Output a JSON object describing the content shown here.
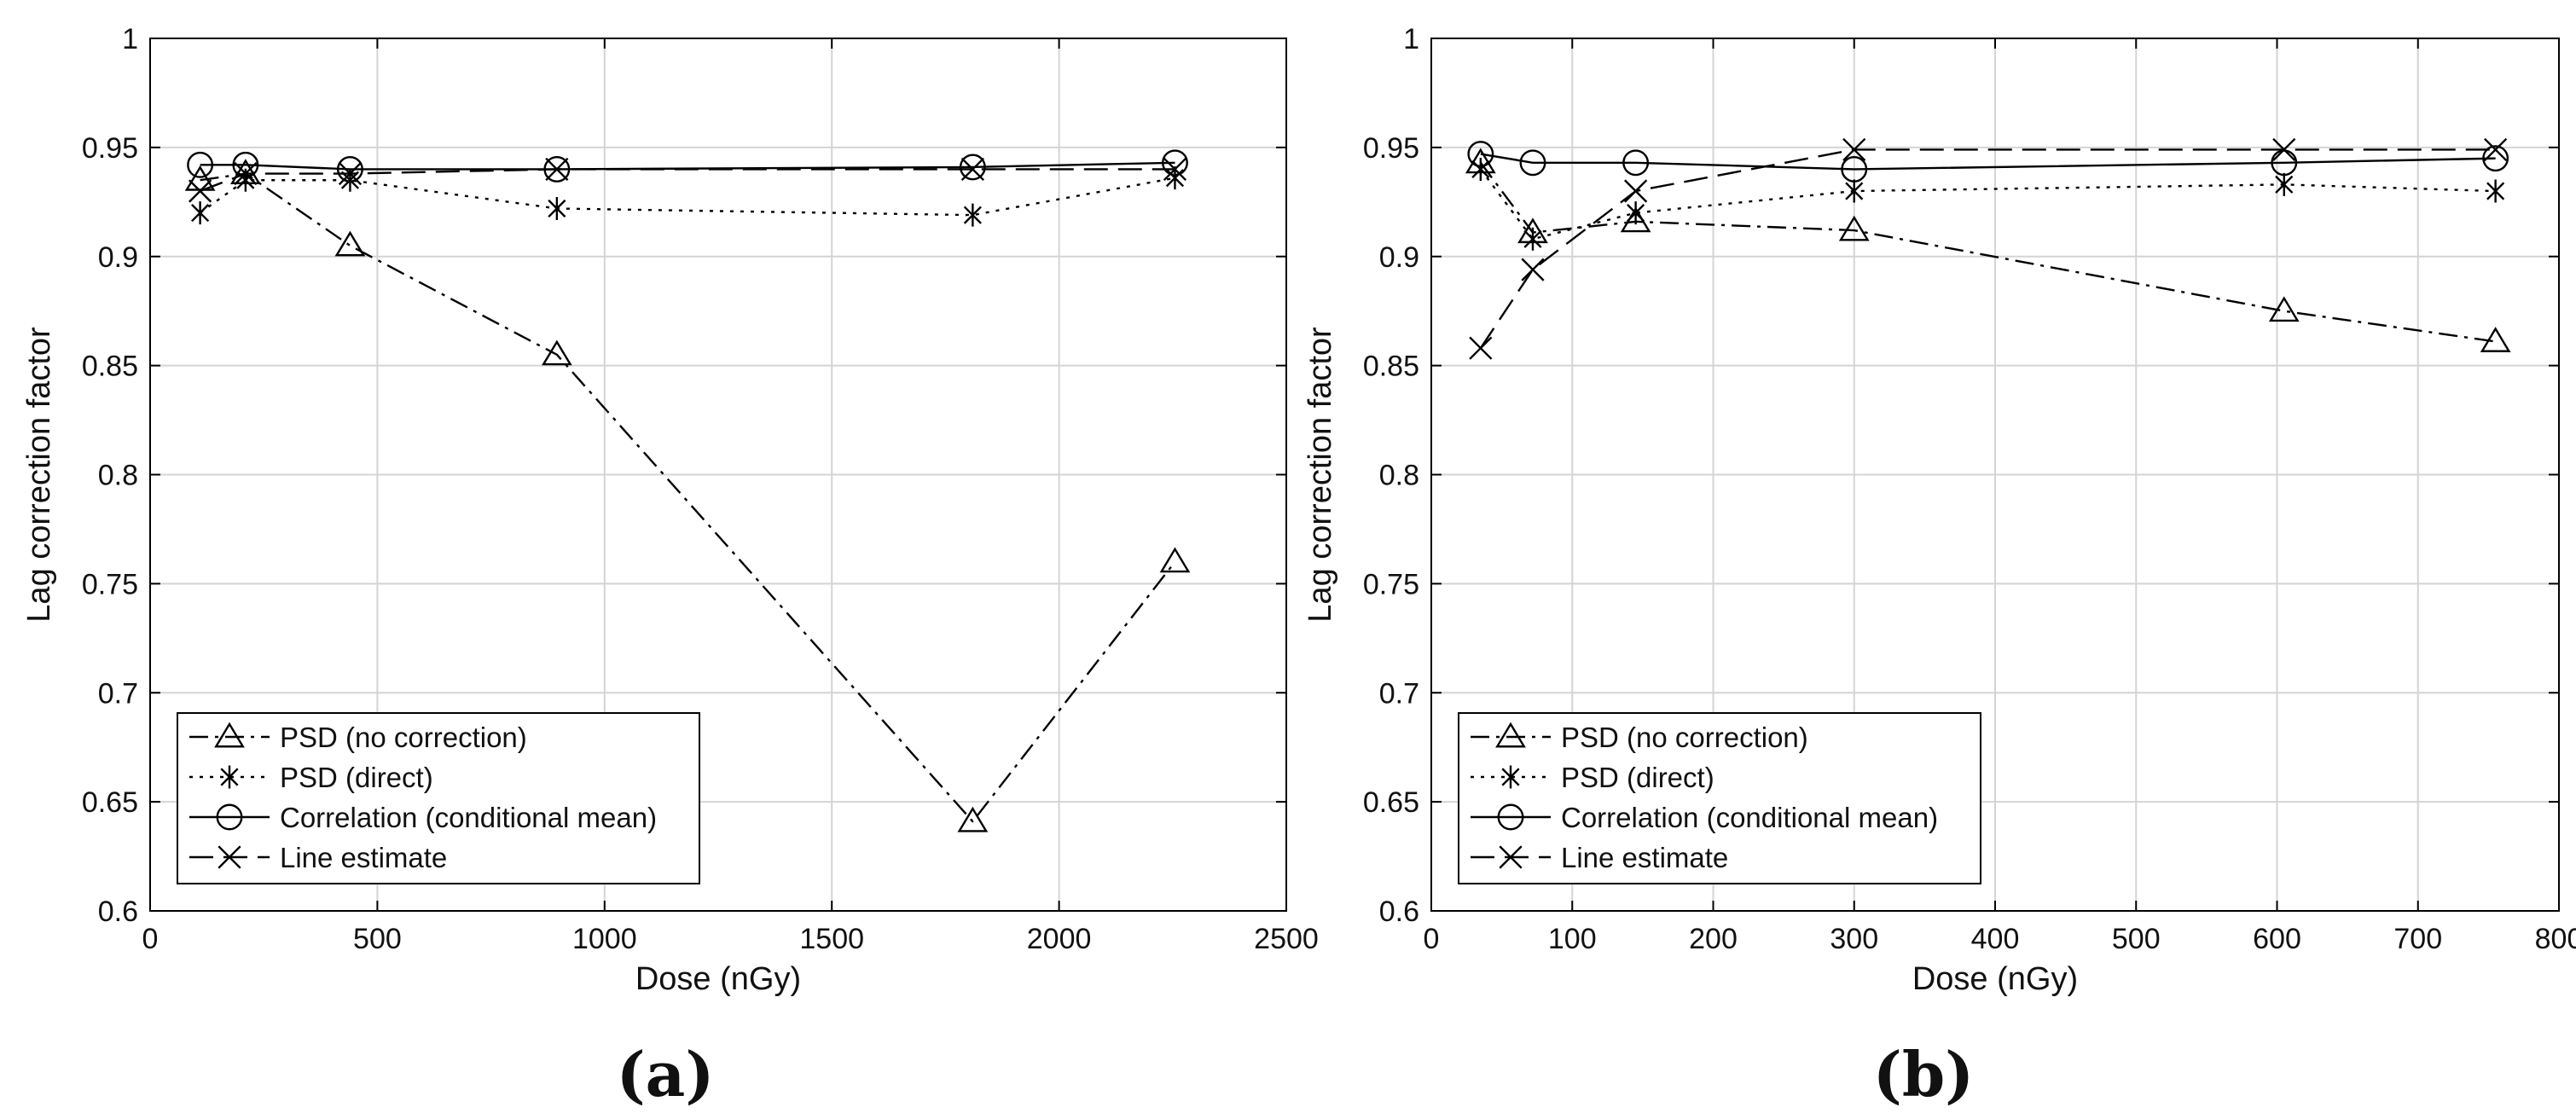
{
  "styles": {
    "line_color": "#000000",
    "grid_color": "#d4d4d4",
    "background": "#ffffff"
  },
  "chart_data": [
    {
      "type": "line",
      "panel_label": "(a)",
      "title": "",
      "xlabel": "Dose (nGy)",
      "ylabel": "Lag correction factor",
      "xlim": [
        0,
        2500
      ],
      "ylim": [
        0.6,
        1
      ],
      "xticks": [
        0,
        500,
        1000,
        1500,
        2000,
        2500
      ],
      "xtick_labels": [
        "0",
        "500",
        "1000",
        "1500",
        "2000",
        "2500"
      ],
      "yticks": [
        0.6,
        0.65,
        0.7,
        0.75,
        0.8,
        0.85,
        0.9,
        0.95,
        1
      ],
      "ytick_labels": [
        "0.6",
        "0.65",
        "0.7",
        "0.75",
        "0.8",
        "0.85",
        "0.9",
        "0.95",
        "1"
      ],
      "grid": true,
      "legend_position": "bottom-left",
      "series": [
        {
          "name": "PSD (no correction)",
          "marker": "triangle",
          "dash": "dashdot",
          "x": [
            110,
            210,
            440,
            895,
            1810,
            2255
          ],
          "y": [
            0.935,
            0.938,
            0.905,
            0.855,
            0.641,
            0.76
          ]
        },
        {
          "name": "PSD (direct)",
          "marker": "asterisk",
          "dash": "dotted",
          "x": [
            110,
            210,
            440,
            895,
            1810,
            2255
          ],
          "y": [
            0.92,
            0.935,
            0.935,
            0.922,
            0.919,
            0.936
          ]
        },
        {
          "name": "Correlation (conditional mean)",
          "marker": "circle",
          "dash": "solid",
          "x": [
            110,
            210,
            440,
            895,
            1810,
            2255
          ],
          "y": [
            0.942,
            0.942,
            0.94,
            0.94,
            0.941,
            0.943
          ]
        },
        {
          "name": "Line estimate",
          "marker": "x",
          "dash": "dashed",
          "x": [
            110,
            210,
            440,
            895,
            1810,
            2255
          ],
          "y": [
            0.93,
            0.938,
            0.938,
            0.94,
            0.94,
            0.94
          ]
        }
      ]
    },
    {
      "type": "line",
      "panel_label": "(b)",
      "title": "",
      "xlabel": "Dose (nGy)",
      "ylabel": "Lag correction factor",
      "xlim": [
        0,
        800
      ],
      "ylim": [
        0.6,
        1
      ],
      "xticks": [
        0,
        100,
        200,
        300,
        400,
        500,
        600,
        700,
        800
      ],
      "xtick_labels": [
        "0",
        "100",
        "200",
        "300",
        "400",
        "500",
        "600",
        "700",
        "800"
      ],
      "yticks": [
        0.6,
        0.65,
        0.7,
        0.75,
        0.8,
        0.85,
        0.9,
        0.95,
        1
      ],
      "ytick_labels": [
        "0.6",
        "0.65",
        "0.7",
        "0.75",
        "0.8",
        "0.85",
        "0.9",
        "0.95",
        "1"
      ],
      "grid": true,
      "legend_position": "bottom-left",
      "series": [
        {
          "name": "PSD (no correction)",
          "marker": "triangle",
          "dash": "dashdot",
          "x": [
            35,
            72,
            145,
            300,
            605,
            755
          ],
          "y": [
            0.943,
            0.911,
            0.916,
            0.912,
            0.875,
            0.861
          ]
        },
        {
          "name": "PSD (direct)",
          "marker": "asterisk",
          "dash": "dotted",
          "x": [
            35,
            72,
            145,
            300,
            605,
            755
          ],
          "y": [
            0.94,
            0.908,
            0.92,
            0.93,
            0.933,
            0.93
          ]
        },
        {
          "name": "Correlation (conditional mean)",
          "marker": "circle",
          "dash": "solid",
          "x": [
            35,
            72,
            145,
            300,
            605,
            755
          ],
          "y": [
            0.947,
            0.943,
            0.943,
            0.94,
            0.943,
            0.945
          ]
        },
        {
          "name": "Line estimate",
          "marker": "x",
          "dash": "dashed",
          "x": [
            35,
            72,
            145,
            300,
            605,
            755
          ],
          "y": [
            0.858,
            0.894,
            0.93,
            0.949,
            0.949,
            0.949
          ]
        }
      ]
    }
  ]
}
